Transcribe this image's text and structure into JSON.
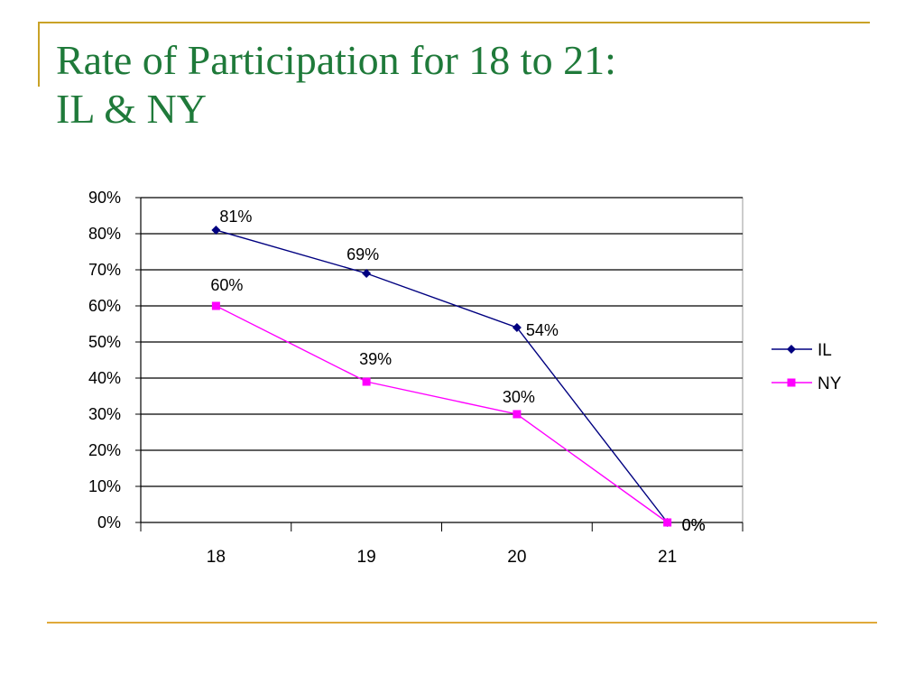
{
  "slide": {
    "title_line1": "Rate of Participation for 18 to 21:",
    "title_line2": "IL & NY"
  },
  "colors": {
    "accent": "#c9a227",
    "title": "#1f7a3a",
    "il": "#000080",
    "ny": "#ff00ff"
  },
  "chart_data": {
    "type": "line",
    "categories": [
      "18",
      "19",
      "20",
      "21"
    ],
    "ylim": [
      0,
      90
    ],
    "yticks": [
      "0%",
      "10%",
      "20%",
      "30%",
      "40%",
      "50%",
      "60%",
      "70%",
      "80%",
      "90%"
    ],
    "grid": true,
    "legend_position": "right",
    "series": [
      {
        "name": "IL",
        "values": [
          81,
          69,
          54,
          0
        ],
        "labels": [
          "81%",
          "69%",
          "54%",
          "0%"
        ],
        "marker": "diamond",
        "color": "#000080"
      },
      {
        "name": "NY",
        "values": [
          60,
          39,
          30,
          0
        ],
        "labels": [
          "60%",
          "39%",
          "30%",
          "0%"
        ],
        "marker": "square",
        "color": "#ff00ff"
      }
    ]
  }
}
